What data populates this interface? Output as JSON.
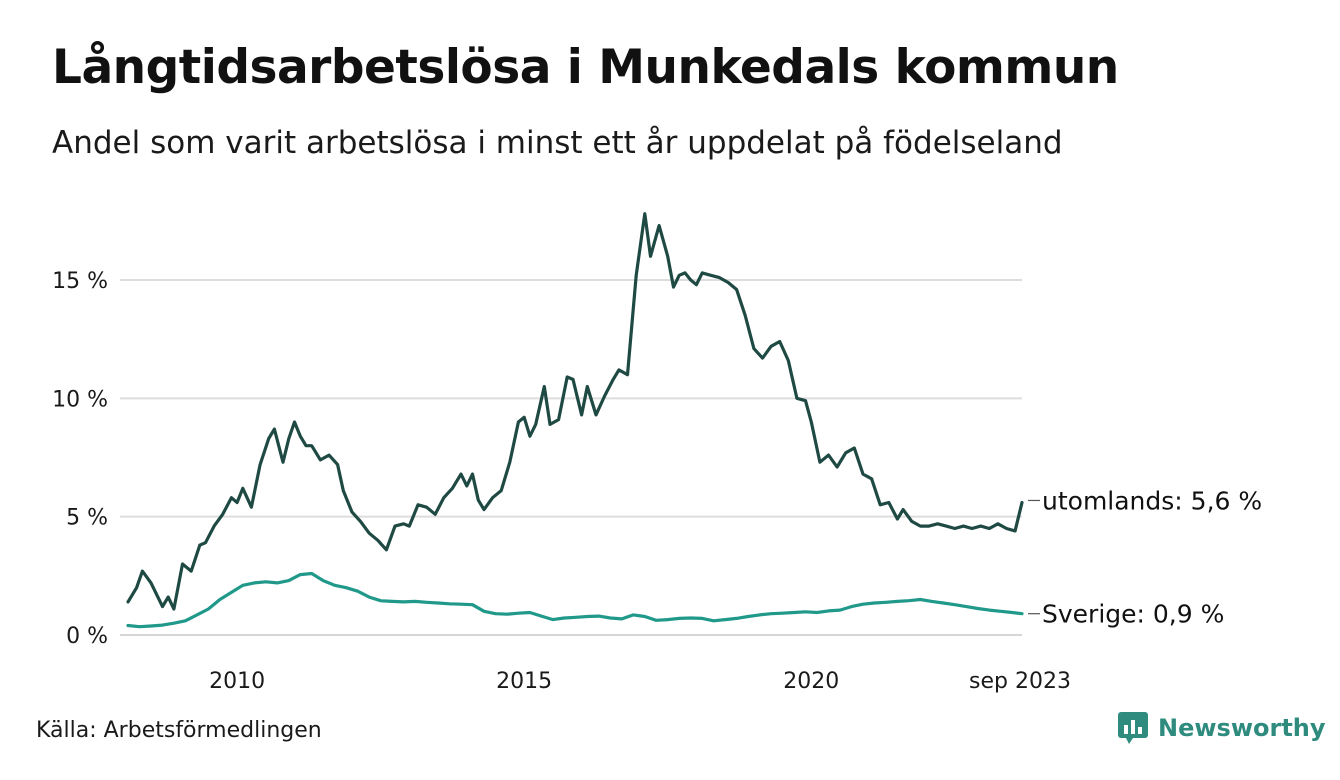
{
  "title": "Långtidsarbetslösa i Munkedals kommun",
  "subtitle": "Andel som varit arbetslösa i minst ett år uppdelat på födelseland",
  "source": "Källa: Arbetsförmedlingen",
  "brand": "Newsworthy",
  "colors": {
    "utomlands": "#1f4a44",
    "sverige": "#20998a",
    "grid": "#dddddd",
    "brand": "#2e8b7e"
  },
  "chart_data": {
    "type": "line",
    "title": "Långtidsarbetslösa i Munkedals kommun",
    "xlabel": "",
    "ylabel": "",
    "ylim": [
      0,
      18
    ],
    "xlim": [
      2008.1,
      2023.67
    ],
    "yticks": [
      0,
      5,
      10,
      15
    ],
    "ytick_labels": [
      "0 %",
      "5 %",
      "10 %",
      "15 %"
    ],
    "xticks": [
      2010,
      2015,
      2020,
      2023.67
    ],
    "xtick_labels": [
      "2010",
      "2015",
      "2020",
      "sep 2023"
    ],
    "grid": true,
    "series": [
      {
        "name": "utomlands",
        "end_label": "utomlands: 5,6 %",
        "x": [
          2008.1,
          2008.25,
          2008.35,
          2008.5,
          2008.7,
          2008.8,
          2008.9,
          2009.05,
          2009.2,
          2009.35,
          2009.45,
          2009.6,
          2009.75,
          2009.9,
          2010.0,
          2010.1,
          2010.25,
          2010.4,
          2010.55,
          2010.65,
          2010.8,
          2010.9,
          2011.0,
          2011.1,
          2011.2,
          2011.3,
          2011.45,
          2011.6,
          2011.75,
          2011.85,
          2012.0,
          2012.15,
          2012.3,
          2012.45,
          2012.6,
          2012.75,
          2012.9,
          2013.0,
          2013.15,
          2013.3,
          2013.45,
          2013.6,
          2013.75,
          2013.9,
          2014.0,
          2014.1,
          2014.2,
          2014.3,
          2014.45,
          2014.6,
          2014.75,
          2014.9,
          2015.0,
          2015.1,
          2015.2,
          2015.35,
          2015.45,
          2015.6,
          2015.75,
          2015.85,
          2016.0,
          2016.1,
          2016.25,
          2016.4,
          2016.55,
          2016.65,
          2016.8,
          2016.95,
          2017.1,
          2017.2,
          2017.35,
          2017.5,
          2017.6,
          2017.7,
          2017.8,
          2017.9,
          2018.0,
          2018.1,
          2018.25,
          2018.4,
          2018.55,
          2018.7,
          2018.85,
          2019.0,
          2019.15,
          2019.3,
          2019.45,
          2019.6,
          2019.75,
          2019.9,
          2020.0,
          2020.15,
          2020.3,
          2020.45,
          2020.6,
          2020.75,
          2020.9,
          2021.05,
          2021.2,
          2021.35,
          2021.5,
          2021.6,
          2021.75,
          2021.9,
          2022.05,
          2022.2,
          2022.35,
          2022.5,
          2022.65,
          2022.8,
          2022.95,
          2023.1,
          2023.25,
          2023.4,
          2023.55,
          2023.67
        ],
        "values": [
          1.4,
          2.0,
          2.7,
          2.2,
          1.2,
          1.6,
          1.1,
          3.0,
          2.7,
          3.8,
          3.9,
          4.6,
          5.1,
          5.8,
          5.6,
          6.2,
          5.4,
          7.2,
          8.3,
          8.7,
          7.3,
          8.3,
          9.0,
          8.4,
          8.0,
          8.0,
          7.4,
          7.6,
          7.2,
          6.1,
          5.2,
          4.8,
          4.3,
          4.0,
          3.6,
          4.6,
          4.7,
          4.6,
          5.5,
          5.4,
          5.1,
          5.8,
          6.2,
          6.8,
          6.3,
          6.8,
          5.7,
          5.3,
          5.8,
          6.1,
          7.3,
          9.0,
          9.2,
          8.4,
          8.9,
          10.5,
          8.9,
          9.1,
          10.9,
          10.8,
          9.3,
          10.5,
          9.3,
          10.1,
          10.8,
          11.2,
          11.0,
          15.2,
          17.8,
          16.0,
          17.3,
          16.0,
          14.7,
          15.2,
          15.3,
          15.0,
          14.8,
          15.3,
          15.2,
          15.1,
          14.9,
          14.6,
          13.5,
          12.1,
          11.7,
          12.2,
          12.4,
          11.6,
          10.0,
          9.9,
          9.0,
          7.3,
          7.6,
          7.1,
          7.7,
          7.9,
          6.8,
          6.6,
          5.5,
          5.6,
          4.9,
          5.3,
          4.8,
          4.6,
          4.6,
          4.7,
          4.6,
          4.5,
          4.6,
          4.5,
          4.6,
          4.5,
          4.7,
          4.5,
          4.4,
          5.6
        ]
      },
      {
        "name": "Sverige",
        "end_label": "Sverige: 0,9 %",
        "x": [
          2008.1,
          2008.3,
          2008.5,
          2008.7,
          2008.9,
          2009.1,
          2009.3,
          2009.5,
          2009.7,
          2009.9,
          2010.1,
          2010.3,
          2010.5,
          2010.7,
          2010.9,
          2011.1,
          2011.3,
          2011.5,
          2011.7,
          2011.9,
          2012.1,
          2012.3,
          2012.5,
          2012.7,
          2012.9,
          2013.1,
          2013.3,
          2013.5,
          2013.7,
          2013.9,
          2014.1,
          2014.3,
          2014.5,
          2014.7,
          2014.9,
          2015.1,
          2015.3,
          2015.5,
          2015.7,
          2015.9,
          2016.1,
          2016.3,
          2016.5,
          2016.7,
          2016.9,
          2017.1,
          2017.3,
          2017.5,
          2017.7,
          2017.9,
          2018.1,
          2018.3,
          2018.5,
          2018.7,
          2018.9,
          2019.1,
          2019.3,
          2019.5,
          2019.7,
          2019.9,
          2020.1,
          2020.3,
          2020.5,
          2020.7,
          2020.9,
          2021.1,
          2021.3,
          2021.5,
          2021.7,
          2021.9,
          2022.1,
          2022.3,
          2022.5,
          2022.7,
          2022.9,
          2023.1,
          2023.3,
          2023.5,
          2023.67
        ],
        "values": [
          0.4,
          0.35,
          0.38,
          0.42,
          0.5,
          0.6,
          0.85,
          1.1,
          1.5,
          1.8,
          2.1,
          2.2,
          2.25,
          2.2,
          2.3,
          2.55,
          2.6,
          2.3,
          2.1,
          2.0,
          1.85,
          1.6,
          1.45,
          1.42,
          1.4,
          1.42,
          1.38,
          1.35,
          1.32,
          1.3,
          1.28,
          1.0,
          0.9,
          0.88,
          0.92,
          0.95,
          0.8,
          0.65,
          0.72,
          0.75,
          0.78,
          0.8,
          0.72,
          0.68,
          0.85,
          0.78,
          0.62,
          0.65,
          0.7,
          0.72,
          0.7,
          0.6,
          0.65,
          0.7,
          0.78,
          0.85,
          0.9,
          0.92,
          0.95,
          0.98,
          0.95,
          1.02,
          1.05,
          1.2,
          1.3,
          1.35,
          1.38,
          1.42,
          1.45,
          1.5,
          1.42,
          1.35,
          1.28,
          1.2,
          1.12,
          1.05,
          1.0,
          0.95,
          0.9
        ]
      }
    ]
  }
}
